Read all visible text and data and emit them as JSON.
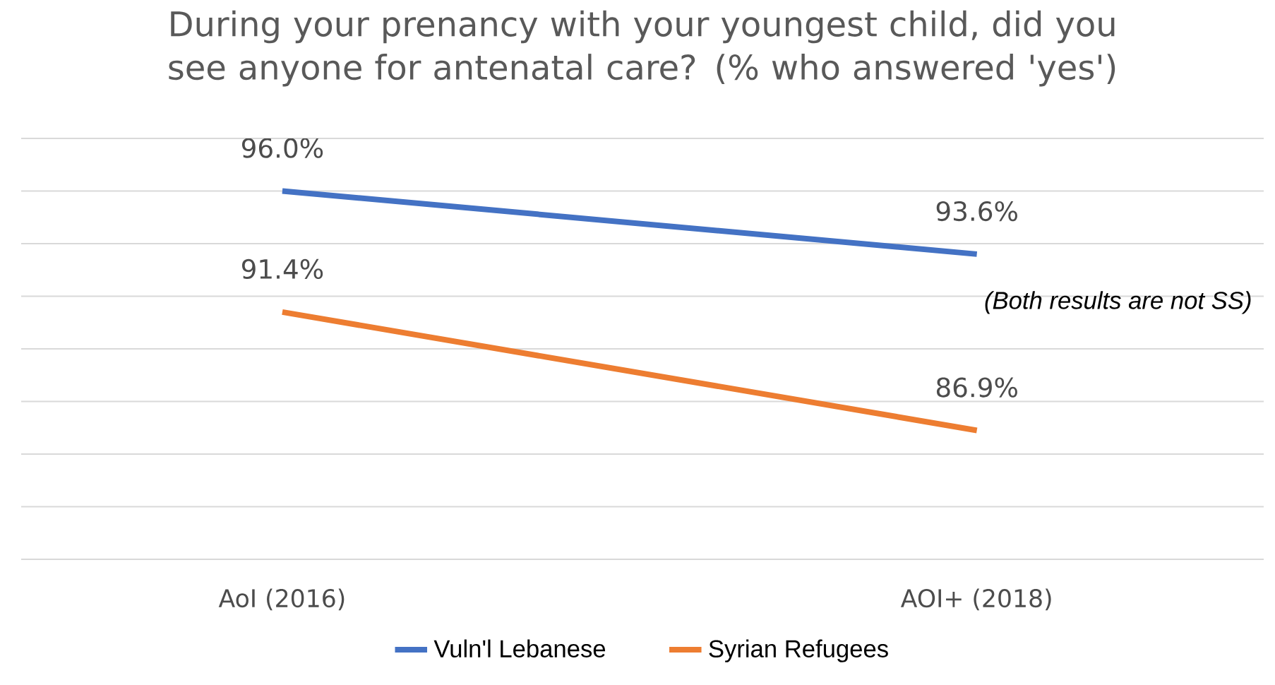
{
  "chart_data": {
    "type": "line",
    "title": "During your prenancy with your youngest child, did you see anyone for antenatal care? (% who answered 'yes')",
    "categories": [
      "AoI (2016)",
      "AOI+ (2018)"
    ],
    "series": [
      {
        "name": "Vuln'l Lebanese",
        "color": "#4472c4",
        "values": [
          96.0,
          93.6
        ],
        "value_labels": [
          "96.0%",
          "93.6%"
        ]
      },
      {
        "name": "Syrian Refugees",
        "color": "#ed7d31",
        "values": [
          91.4,
          86.9
        ],
        "value_labels": [
          "91.4%",
          "86.9%"
        ]
      }
    ],
    "ylim": [
      82,
      98
    ],
    "yticks": [
      {
        "value": 82,
        "label": null
      },
      {
        "value": 84,
        "label": null
      },
      {
        "value": 86,
        "label": null
      },
      {
        "value": 88,
        "label": null
      },
      {
        "value": 90,
        "label": null
      },
      {
        "value": 92,
        "label": null
      },
      {
        "value": 94,
        "label": null
      },
      {
        "value": 96,
        "label": null
      },
      {
        "value": 98,
        "label": null
      }
    ],
    "tick_labels": "x",
    "grid": "y",
    "legend": "bottom",
    "marker": "none",
    "line_style": "solid",
    "annotations": [
      "(Both results are not SS)"
    ]
  }
}
